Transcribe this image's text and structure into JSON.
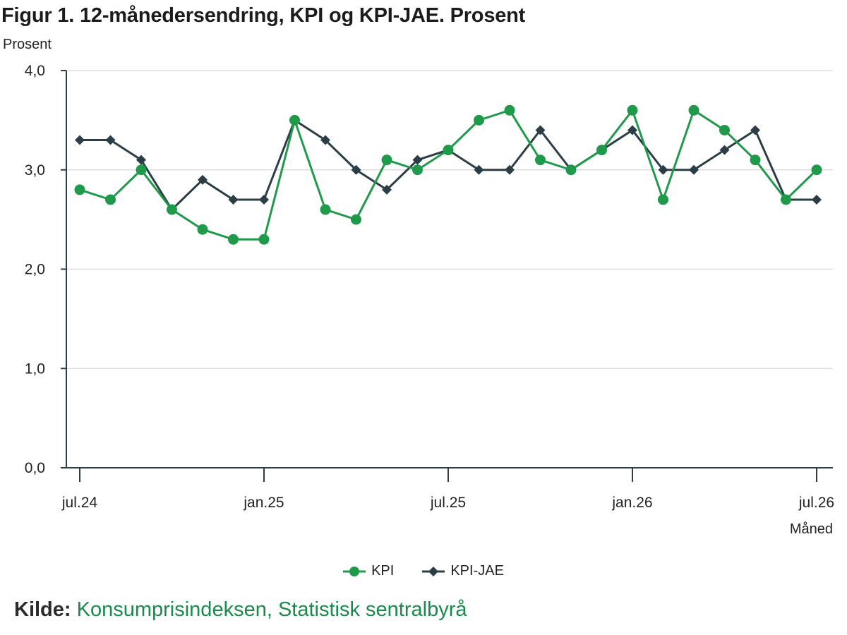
{
  "title": "Figur 1. 12-månedersendring, KPI og KPI-JAE. Prosent",
  "source": {
    "label": "Kilde:",
    "text": "Konsumprisindeksen, Statistisk sentralbyrå"
  },
  "colors": {
    "kpi": "#1f9a4a",
    "kpi_jae": "#2b3e46",
    "grid": "#dddddd",
    "axis": "#2b3e46"
  },
  "chart_data": {
    "type": "line",
    "title": "Figur 1. 12-månedersendring, KPI og KPI-JAE. Prosent",
    "ylabel": "Prosent",
    "xlabel": "Måned",
    "ylim": [
      0,
      4
    ],
    "yticks": [
      "0,0",
      "1,0",
      "2,0",
      "3,0",
      "4,0"
    ],
    "ytick_values": [
      0,
      1,
      2,
      3,
      4
    ],
    "x": [
      "2024-07",
      "2024-08",
      "2024-09",
      "2024-10",
      "2024-11",
      "2024-12",
      "2025-01",
      "2025-02",
      "2025-03",
      "2025-04",
      "2025-05",
      "2025-06",
      "2025-07",
      "2025-08",
      "2025-09",
      "2025-10",
      "2025-11",
      "2025-12",
      "2026-01",
      "2026-02",
      "2026-03",
      "2026-04",
      "2026-05",
      "2026-06",
      "2026-07"
    ],
    "xticks": [
      "jul.24",
      "jan.25",
      "jul.25",
      "jan.26",
      "jul.26"
    ],
    "xtick_months": [
      "2024-07",
      "2025-01",
      "2025-07",
      "2026-01",
      "2026-07"
    ],
    "grid": true,
    "legend_position": "bottom-center",
    "series": [
      {
        "name": "KPI",
        "marker": "circle",
        "values": [
          2.8,
          2.7,
          3.0,
          2.6,
          2.4,
          2.3,
          2.3,
          3.5,
          2.6,
          2.5,
          3.1,
          3.0,
          3.2,
          3.5,
          3.6,
          3.1,
          3.0,
          3.2,
          3.6,
          2.7,
          3.6,
          3.4,
          3.1,
          2.7,
          3.0
        ]
      },
      {
        "name": "KPI-JAE",
        "marker": "diamond",
        "values": [
          3.3,
          3.3,
          3.1,
          2.6,
          2.9,
          2.7,
          2.7,
          3.5,
          3.3,
          3.0,
          2.8,
          3.1,
          3.2,
          3.0,
          3.0,
          3.4,
          3.0,
          3.2,
          3.4,
          3.0,
          3.0,
          3.2,
          3.4,
          2.7,
          2.7
        ]
      }
    ]
  }
}
